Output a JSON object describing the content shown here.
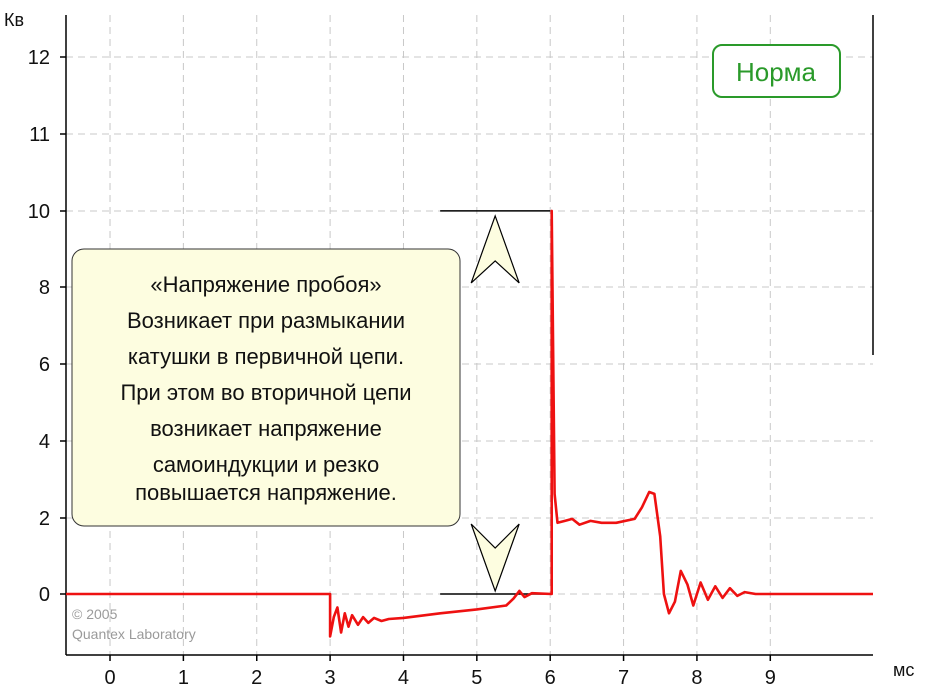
{
  "chart_data": {
    "type": "line",
    "title": "",
    "xlabel": "мс",
    "ylabel": "Кв",
    "xlim": [
      -0.6,
      10.4
    ],
    "ylim": [
      -1.5,
      13.0
    ],
    "x_ticks": [
      0,
      1,
      2,
      3,
      4,
      5,
      6,
      7,
      8,
      9
    ],
    "y_ticks": [
      0,
      2,
      4,
      6,
      8,
      10,
      11,
      12
    ],
    "grid": true,
    "series": [
      {
        "color": "#ee1111",
        "points": [
          [
            -0.6,
            0
          ],
          [
            3.0,
            0
          ],
          [
            3.0,
            -1.1
          ],
          [
            3.05,
            -0.6
          ],
          [
            3.1,
            -0.35
          ],
          [
            3.15,
            -1.0
          ],
          [
            3.2,
            -0.5
          ],
          [
            3.25,
            -0.85
          ],
          [
            3.3,
            -0.55
          ],
          [
            3.38,
            -0.8
          ],
          [
            3.45,
            -0.6
          ],
          [
            3.52,
            -0.75
          ],
          [
            3.6,
            -0.62
          ],
          [
            3.7,
            -0.7
          ],
          [
            3.8,
            -0.65
          ],
          [
            4.0,
            -0.62
          ],
          [
            4.5,
            -0.5
          ],
          [
            5.0,
            -0.4
          ],
          [
            5.4,
            -0.3
          ],
          [
            5.5,
            -0.12
          ],
          [
            5.58,
            0.08
          ],
          [
            5.65,
            -0.08
          ],
          [
            5.75,
            0.02
          ],
          [
            6.02,
            0
          ],
          [
            6.02,
            9.95
          ],
          [
            6.06,
            2.6
          ],
          [
            6.1,
            1.85
          ],
          [
            6.2,
            1.9
          ],
          [
            6.3,
            1.95
          ],
          [
            6.4,
            1.8
          ],
          [
            6.55,
            1.9
          ],
          [
            6.7,
            1.85
          ],
          [
            6.9,
            1.85
          ],
          [
            7.15,
            1.95
          ],
          [
            7.25,
            2.25
          ],
          [
            7.35,
            2.65
          ],
          [
            7.42,
            2.6
          ],
          [
            7.5,
            1.5
          ],
          [
            7.55,
            0.0
          ],
          [
            7.62,
            -0.5
          ],
          [
            7.7,
            -0.2
          ],
          [
            7.78,
            0.6
          ],
          [
            7.87,
            0.25
          ],
          [
            7.95,
            -0.3
          ],
          [
            8.05,
            0.3
          ],
          [
            8.15,
            -0.15
          ],
          [
            8.25,
            0.2
          ],
          [
            8.35,
            -0.1
          ],
          [
            8.45,
            0.15
          ],
          [
            8.55,
            -0.05
          ],
          [
            8.65,
            0.05
          ],
          [
            8.8,
            0
          ],
          [
            10.4,
            0
          ]
        ]
      }
    ],
    "annotation": {
      "lines": [
        "«Напряжение пробоя»",
        "Возникает при размыкании",
        "катушки в первичной цепи.",
        "При этом во вторичной цепи",
        "возникает напряжение",
        "самоиндукции  и резко",
        "повышается напряжение."
      ]
    },
    "dimension_marker": {
      "x": 5.25,
      "y_from": 0,
      "y_to": 9.95
    },
    "badge": "Норма",
    "copyright": [
      "© 2005",
      "Quantex Laboratory"
    ]
  },
  "colors": {
    "signal": "#ee1111",
    "badge": "#2a9a2a",
    "note_fill": "#fdfde0",
    "arrow_fill": "#fdfde0",
    "grid": "#c8c8c8"
  }
}
